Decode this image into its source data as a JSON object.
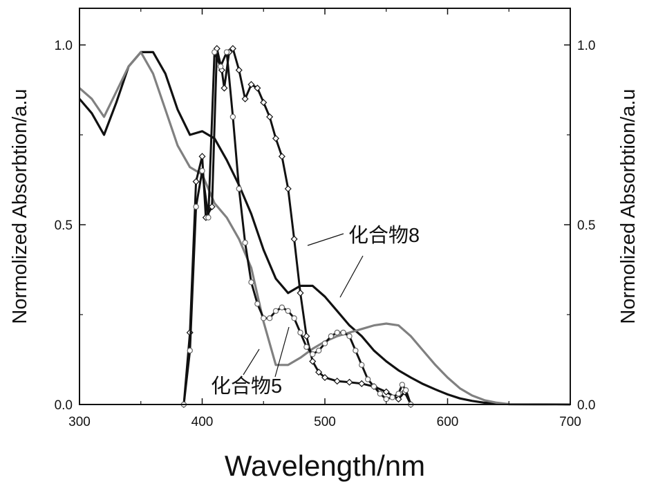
{
  "chart_data": {
    "type": "line",
    "xlabel": "Wavelength/nm",
    "ylabel_left": "Normolized Absorbtion/a.u",
    "ylabel_right": "Normolized Absorbtion/a.u",
    "xlim": [
      300,
      700
    ],
    "ylim": [
      0,
      1.05
    ],
    "x_ticks": [
      300,
      400,
      500,
      600,
      700
    ],
    "x_tick_labels": [
      "300",
      "400",
      "500",
      "600",
      "700"
    ],
    "y_ticks": [
      0,
      0.5,
      1.0
    ],
    "y_tick_labels": [
      "0.0",
      "0.5",
      "1.0"
    ],
    "y_tick_labels_right": [
      "0.0",
      "0.5",
      "1.0"
    ],
    "grid": false,
    "annotations": [
      {
        "text": "化合物8",
        "points_to": "compound-8 curves"
      },
      {
        "text": "化合物5",
        "points_to": "compound-5 curves"
      }
    ],
    "series": [
      {
        "label": "化合物8",
        "style": "solid",
        "color": "#111111",
        "points": [
          [
            300,
            0.85
          ],
          [
            310,
            0.81
          ],
          [
            320,
            0.75
          ],
          [
            330,
            0.84
          ],
          [
            340,
            0.94
          ],
          [
            350,
            0.98
          ],
          [
            360,
            0.98
          ],
          [
            370,
            0.92
          ],
          [
            380,
            0.82
          ],
          [
            390,
            0.75
          ],
          [
            400,
            0.76
          ],
          [
            410,
            0.74
          ],
          [
            420,
            0.68
          ],
          [
            430,
            0.61
          ],
          [
            440,
            0.53
          ],
          [
            450,
            0.43
          ],
          [
            460,
            0.35
          ],
          [
            470,
            0.31
          ],
          [
            480,
            0.33
          ],
          [
            490,
            0.33
          ],
          [
            500,
            0.3
          ],
          [
            510,
            0.26
          ],
          [
            520,
            0.22
          ],
          [
            530,
            0.19
          ],
          [
            540,
            0.15
          ],
          [
            550,
            0.12
          ],
          [
            560,
            0.095
          ],
          [
            570,
            0.075
          ],
          [
            580,
            0.057
          ],
          [
            590,
            0.042
          ],
          [
            600,
            0.028
          ],
          [
            610,
            0.017
          ],
          [
            620,
            0.01
          ],
          [
            630,
            0.005
          ],
          [
            640,
            0.003
          ],
          [
            650,
            0.001
          ],
          [
            700,
            0.0
          ]
        ]
      },
      {
        "label": "化合物5",
        "style": "solid",
        "color": "#808080",
        "points": [
          [
            300,
            0.88
          ],
          [
            310,
            0.85
          ],
          [
            320,
            0.8
          ],
          [
            330,
            0.87
          ],
          [
            340,
            0.94
          ],
          [
            350,
            0.98
          ],
          [
            360,
            0.92
          ],
          [
            370,
            0.82
          ],
          [
            380,
            0.72
          ],
          [
            390,
            0.66
          ],
          [
            400,
            0.64
          ],
          [
            410,
            0.56
          ],
          [
            420,
            0.52
          ],
          [
            430,
            0.46
          ],
          [
            440,
            0.38
          ],
          [
            450,
            0.23
          ],
          [
            460,
            0.11
          ],
          [
            470,
            0.11
          ],
          [
            480,
            0.13
          ],
          [
            490,
            0.155
          ],
          [
            500,
            0.175
          ],
          [
            510,
            0.19
          ],
          [
            520,
            0.2
          ],
          [
            530,
            0.21
          ],
          [
            540,
            0.22
          ],
          [
            550,
            0.225
          ],
          [
            560,
            0.22
          ],
          [
            570,
            0.19
          ],
          [
            580,
            0.15
          ],
          [
            590,
            0.11
          ],
          [
            600,
            0.075
          ],
          [
            610,
            0.045
          ],
          [
            620,
            0.025
          ],
          [
            630,
            0.012
          ],
          [
            640,
            0.005
          ],
          [
            650,
            0.001
          ],
          [
            700,
            0.0
          ]
        ]
      },
      {
        "label": "化合物8",
        "style": "diamond-markers",
        "color": "#111111",
        "points": [
          [
            385,
            0.0
          ],
          [
            390,
            0.2
          ],
          [
            395,
            0.62
          ],
          [
            400,
            0.69
          ],
          [
            403,
            0.52
          ],
          [
            408,
            0.55
          ],
          [
            412,
            0.99
          ],
          [
            416,
            0.93
          ],
          [
            418,
            0.88
          ],
          [
            422,
            0.98
          ],
          [
            425,
            0.99
          ],
          [
            430,
            0.93
          ],
          [
            435,
            0.85
          ],
          [
            440,
            0.89
          ],
          [
            445,
            0.88
          ],
          [
            450,
            0.84
          ],
          [
            455,
            0.8
          ],
          [
            460,
            0.74
          ],
          [
            465,
            0.69
          ],
          [
            470,
            0.6
          ],
          [
            475,
            0.46
          ],
          [
            480,
            0.31
          ],
          [
            485,
            0.19
          ],
          [
            490,
            0.12
          ],
          [
            495,
            0.09
          ],
          [
            500,
            0.075
          ],
          [
            510,
            0.065
          ],
          [
            520,
            0.062
          ],
          [
            530,
            0.058
          ],
          [
            540,
            0.05
          ],
          [
            550,
            0.035
          ],
          [
            560,
            0.015
          ],
          [
            565,
            0.035
          ],
          [
            570,
            0.0
          ]
        ]
      },
      {
        "label": "化合物5",
        "style": "circle-markers",
        "color": "#111111",
        "points": [
          [
            385,
            0.0
          ],
          [
            390,
            0.15
          ],
          [
            395,
            0.55
          ],
          [
            400,
            0.65
          ],
          [
            405,
            0.52
          ],
          [
            410,
            0.98
          ],
          [
            415,
            0.94
          ],
          [
            420,
            0.98
          ],
          [
            425,
            0.8
          ],
          [
            430,
            0.6
          ],
          [
            435,
            0.45
          ],
          [
            440,
            0.34
          ],
          [
            445,
            0.28
          ],
          [
            450,
            0.24
          ],
          [
            455,
            0.24
          ],
          [
            460,
            0.26
          ],
          [
            465,
            0.27
          ],
          [
            470,
            0.26
          ],
          [
            475,
            0.24
          ],
          [
            480,
            0.2
          ],
          [
            485,
            0.16
          ],
          [
            490,
            0.14
          ],
          [
            495,
            0.15
          ],
          [
            500,
            0.17
          ],
          [
            505,
            0.19
          ],
          [
            510,
            0.2
          ],
          [
            515,
            0.2
          ],
          [
            520,
            0.19
          ],
          [
            525,
            0.15
          ],
          [
            530,
            0.11
          ],
          [
            535,
            0.07
          ],
          [
            540,
            0.05
          ],
          [
            545,
            0.03
          ],
          [
            550,
            0.015
          ],
          [
            555,
            0.02
          ],
          [
            560,
            0.03
          ],
          [
            563,
            0.055
          ],
          [
            566,
            0.04
          ],
          [
            570,
            0.0
          ]
        ]
      }
    ]
  }
}
